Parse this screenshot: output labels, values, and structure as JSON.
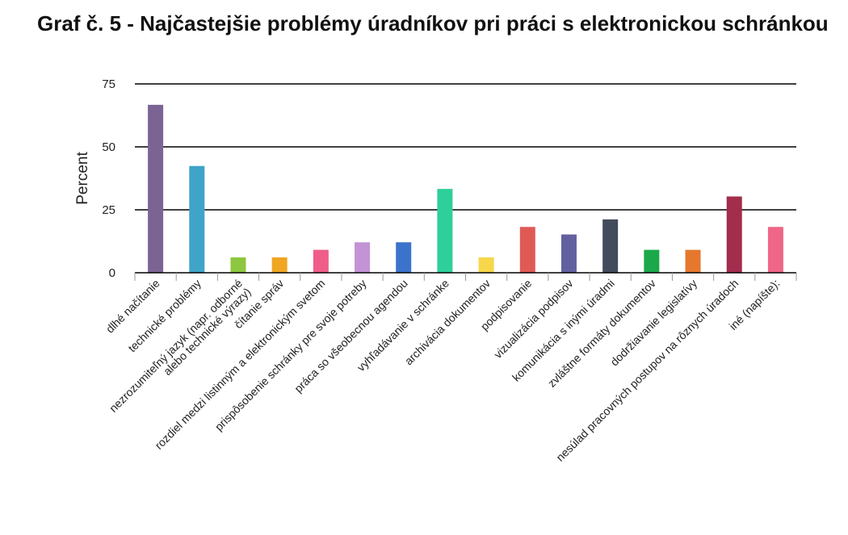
{
  "title": "Graf č. 5 - Najčastejšie problémy úradníkov pri práci s elektronickou schránkou",
  "chart_data": {
    "type": "bar",
    "ylabel": "Percent",
    "xlabel": "",
    "ylim": [
      0,
      75
    ],
    "yticks": [
      0,
      25,
      50,
      75
    ],
    "grid": true,
    "categories": [
      "dlhé načítanie",
      "technické problémy",
      "nezrozumiteľný jazyk (napr. odborné alebo technické výrazy)",
      "čítanie správ",
      "rozdiel medzi listinným a elektronickým svetom",
      "prispôsobenie schránky pre svoje potreby",
      "práca so všeobecnou agendou",
      "vyhľadávanie v schránke",
      "archivácia dokumentov",
      "podpisovanie",
      "vizualizácia podpisov",
      "komunikácia s inými úradmi",
      "zvláštne formáty dokumentov",
      "dodržiavanie legislatívy",
      "nesúlad pracovných postupov na rôznych úradoch",
      "iné (napíšte):"
    ],
    "label_lines": [
      [
        "dlhé načítanie"
      ],
      [
        "technické problémy"
      ],
      [
        "nezrozumiteľný jazyk (napr. odborné",
        "alebo technické výrazy)"
      ],
      [
        "čítanie správ"
      ],
      [
        "rozdiel medzi listinným a elektronickým svetom"
      ],
      [
        "prispôsobenie schránky pre svoje potreby"
      ],
      [
        "práca so všeobecnou agendou"
      ],
      [
        "vyhľadávanie v schránke"
      ],
      [
        "archivácia dokumentov"
      ],
      [
        "podpisovanie"
      ],
      [
        "vizualizácia podpisov"
      ],
      [
        "komunikácia s inými úradmi"
      ],
      [
        "zvláštne formáty dokumentov"
      ],
      [
        "dodržiavanie legislatívy"
      ],
      [
        "nesúlad pracovných postupov na rôznych úradoch"
      ],
      [
        "iné (napíšte):"
      ]
    ],
    "values": [
      66.7,
      42.4,
      6.1,
      6.1,
      9.1,
      12.1,
      12.1,
      33.3,
      6.1,
      18.2,
      15.2,
      21.2,
      9.1,
      9.1,
      30.3,
      18.2
    ],
    "colors": [
      "#7b6494",
      "#3fa4c8",
      "#8dc63f",
      "#f0a523",
      "#ef5e89",
      "#c493d6",
      "#3b72cb",
      "#2ecf9a",
      "#f7d64a",
      "#e05a55",
      "#6360a0",
      "#414b5c",
      "#1aa84a",
      "#e5782c",
      "#a22d4d",
      "#ef6689"
    ]
  }
}
